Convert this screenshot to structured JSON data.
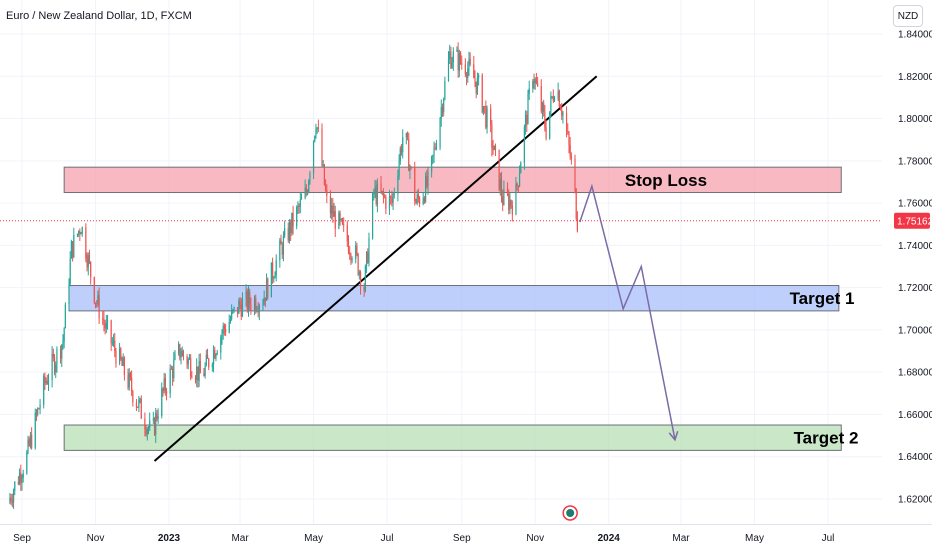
{
  "header": {
    "symbol_title": "Euro / New Zealand Dollar, 1D, FXCM",
    "currency_button": "NZD"
  },
  "colors": {
    "up": "#26a69a",
    "down": "#ef5350",
    "stop_zone": "#f7a1ad",
    "target1_zone": "#a9bff9",
    "target2_zone": "#b8dfb6",
    "path": "#7b6ba6",
    "trendline": "#000000",
    "last_price": "#f23645"
  },
  "chart_data": {
    "type": "candlestick",
    "title": "Euro / New Zealand Dollar, 1D, FXCM",
    "ylim": [
      1.61,
      1.845
    ],
    "y_ticks": [
      "1.84000",
      "1.82000",
      "1.80000",
      "1.78000",
      "1.76000",
      "1.74000",
      "1.72000",
      "1.70000",
      "1.68000",
      "1.66000",
      "1.64000",
      "1.62000"
    ],
    "x_ticks": [
      "Sep",
      "Nov",
      "2023",
      "Mar",
      "May",
      "Jul",
      "Sep",
      "Nov",
      "2024",
      "Mar",
      "May",
      "Jul"
    ],
    "x_tick_dates": [
      "2022-09-01",
      "2022-11-01",
      "2023-01-01",
      "2023-03-01",
      "2023-05-01",
      "2023-07-01",
      "2023-09-01",
      "2023-11-01",
      "2024-01-01",
      "2024-03-01",
      "2024-05-01",
      "2024-07-01"
    ],
    "last_price": "1.75162",
    "candle_anchors": [
      [
        "2022-08-20",
        1.618
      ],
      [
        "2022-09-05",
        1.64
      ],
      [
        "2022-09-20",
        1.675
      ],
      [
        "2022-10-05",
        1.695
      ],
      [
        "2022-10-12",
        1.738
      ],
      [
        "2022-10-20",
        1.75
      ],
      [
        "2022-11-01",
        1.715
      ],
      [
        "2022-11-10",
        1.7
      ],
      [
        "2022-11-25",
        1.68
      ],
      [
        "2022-12-10",
        1.66
      ],
      [
        "2022-12-18",
        1.65
      ],
      [
        "2022-12-24",
        1.666
      ],
      [
        "2023-01-10",
        1.69
      ],
      [
        "2023-01-28",
        1.678
      ],
      [
        "2023-02-15",
        1.7
      ],
      [
        "2023-03-01",
        1.712
      ],
      [
        "2023-03-20",
        1.715
      ],
      [
        "2023-04-05",
        1.74
      ],
      [
        "2023-04-25",
        1.765
      ],
      [
        "2023-05-03",
        1.8
      ],
      [
        "2023-05-12",
        1.76
      ],
      [
        "2023-06-05",
        1.735
      ],
      [
        "2023-06-12",
        1.72
      ],
      [
        "2023-06-20",
        1.765
      ],
      [
        "2023-07-05",
        1.76
      ],
      [
        "2023-07-15",
        1.795
      ],
      [
        "2023-07-25",
        1.76
      ],
      [
        "2023-08-05",
        1.77
      ],
      [
        "2023-08-22",
        1.83
      ],
      [
        "2023-09-05",
        1.825
      ],
      [
        "2023-09-15",
        1.815
      ],
      [
        "2023-09-25",
        1.792
      ],
      [
        "2023-10-05",
        1.762
      ],
      [
        "2023-10-15",
        1.76
      ],
      [
        "2023-10-22",
        1.79
      ],
      [
        "2023-10-30",
        1.822
      ],
      [
        "2023-11-10",
        1.795
      ],
      [
        "2023-11-18",
        1.818
      ],
      [
        "2023-11-25",
        1.8
      ],
      [
        "2023-12-02",
        1.775
      ],
      [
        "2023-12-06",
        1.752
      ]
    ],
    "trendline": {
      "start": [
        "2022-12-20",
        1.638
      ],
      "end": [
        "2023-12-22",
        1.82
      ]
    },
    "zones": [
      {
        "name": "Stop Loss",
        "from": "2022-10-06",
        "to": "2024-07-12",
        "top": 1.777,
        "bottom": 1.765
      },
      {
        "name": "Target 1",
        "from": "2022-10-10",
        "to": "2024-07-10",
        "top": 1.721,
        "bottom": 1.709
      },
      {
        "name": "Target 2",
        "from": "2022-10-06",
        "to": "2024-07-12",
        "top": 1.655,
        "bottom": 1.643
      }
    ],
    "projection": [
      [
        "2023-12-08",
        1.751
      ],
      [
        "2023-12-18",
        1.768
      ],
      [
        "2024-01-13",
        1.71
      ],
      [
        "2024-01-28",
        1.73
      ],
      [
        "2024-02-25",
        1.648
      ]
    ]
  }
}
